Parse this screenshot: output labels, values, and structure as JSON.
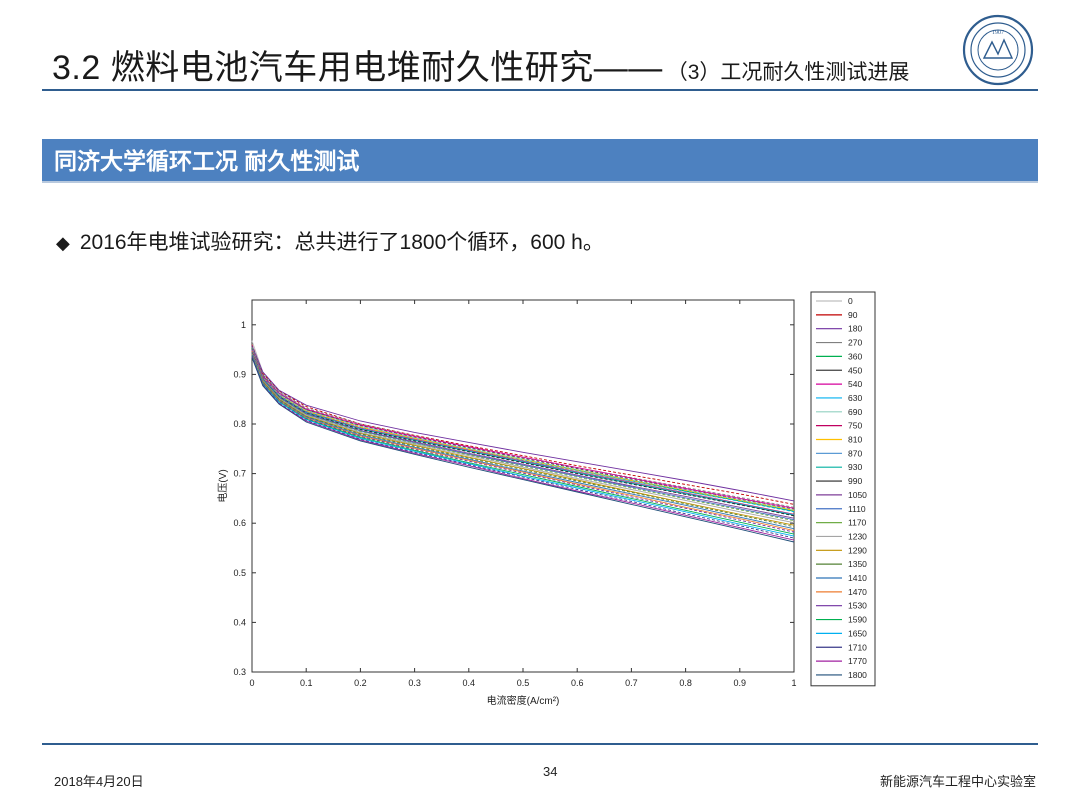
{
  "slide": {
    "title": "3.2 燃料电池汽车用电堆耐久性研究——",
    "subtitle": "（3）工况耐久性测试进展",
    "section_band": "同济大学循环工况 耐久性测试",
    "bullet": "2016年电堆试验研究：总共进行了1800个循环，600 h。",
    "footer_date": "2018年4月20日",
    "page_number": "34",
    "footer_org": "新能源汽车工程中心实验室",
    "logo_text": "1907",
    "colors": {
      "accent": "#2f5d8f",
      "band": "#4d81c0"
    }
  },
  "chart_data": {
    "type": "line",
    "title": "",
    "xlabel": "电流密度(A/cm²)",
    "ylabel": "电压(V)",
    "xlim": [
      0,
      1
    ],
    "ylim": [
      0.3,
      1.05
    ],
    "xticks": [
      "0",
      "0.1",
      "0.2",
      "0.3",
      "0.4",
      "0.5",
      "0.6",
      "0.7",
      "0.8",
      "0.9",
      "1"
    ],
    "yticks": [
      "0.3",
      "0.4",
      "0.5",
      "0.6",
      "0.7",
      "0.8",
      "0.9",
      "1"
    ],
    "grid": false,
    "legend_position": "right-outside",
    "x": [
      0,
      0.02,
      0.05,
      0.1,
      0.2,
      0.3,
      0.4,
      0.5,
      0.6,
      0.7,
      0.8,
      0.9,
      1.0
    ],
    "series": [
      {
        "name": "0",
        "color": "#bfbfbf",
        "values": [
          0.968,
          0.905,
          0.865,
          0.83,
          0.795,
          0.77,
          0.748,
          0.725,
          0.705,
          0.684,
          0.664,
          0.645,
          0.625
        ]
      },
      {
        "name": "90",
        "color": "#c00000",
        "values": [
          0.96,
          0.902,
          0.867,
          0.835,
          0.8,
          0.777,
          0.756,
          0.736,
          0.716,
          0.697,
          0.678,
          0.659,
          0.638
        ]
      },
      {
        "name": "180",
        "color": "#7030a0",
        "values": [
          0.958,
          0.905,
          0.868,
          0.838,
          0.806,
          0.783,
          0.763,
          0.743,
          0.724,
          0.705,
          0.686,
          0.666,
          0.645
        ]
      },
      {
        "name": "270",
        "color": "#808080",
        "values": [
          0.955,
          0.9,
          0.865,
          0.832,
          0.8,
          0.776,
          0.754,
          0.733,
          0.712,
          0.692,
          0.672,
          0.652,
          0.632
        ]
      },
      {
        "name": "360",
        "color": "#00b050",
        "values": [
          0.952,
          0.898,
          0.862,
          0.828,
          0.795,
          0.772,
          0.75,
          0.728,
          0.707,
          0.686,
          0.665,
          0.645,
          0.624
        ]
      },
      {
        "name": "450",
        "color": "#404040",
        "values": [
          0.95,
          0.896,
          0.861,
          0.829,
          0.797,
          0.774,
          0.752,
          0.731,
          0.71,
          0.689,
          0.668,
          0.648,
          0.628
        ]
      },
      {
        "name": "540",
        "color": "#d6009c",
        "values": [
          0.95,
          0.897,
          0.862,
          0.83,
          0.798,
          0.775,
          0.754,
          0.733,
          0.712,
          0.691,
          0.67,
          0.65,
          0.63
        ]
      },
      {
        "name": "630",
        "color": "#00b0f0",
        "values": [
          0.948,
          0.895,
          0.86,
          0.827,
          0.794,
          0.771,
          0.749,
          0.727,
          0.706,
          0.685,
          0.664,
          0.644,
          0.623
        ]
      },
      {
        "name": "690",
        "color": "#92d0c0",
        "values": [
          0.948,
          0.894,
          0.859,
          0.827,
          0.795,
          0.772,
          0.75,
          0.729,
          0.708,
          0.687,
          0.667,
          0.647,
          0.627
        ]
      },
      {
        "name": "750",
        "color": "#c00060",
        "values": [
          0.947,
          0.894,
          0.858,
          0.825,
          0.792,
          0.769,
          0.747,
          0.725,
          0.703,
          0.682,
          0.661,
          0.64,
          0.618
        ]
      },
      {
        "name": "810",
        "color": "#ffc000",
        "values": [
          0.946,
          0.893,
          0.858,
          0.826,
          0.794,
          0.771,
          0.749,
          0.728,
          0.707,
          0.686,
          0.666,
          0.646,
          0.626
        ]
      },
      {
        "name": "870",
        "color": "#5b9bd5",
        "values": [
          0.945,
          0.892,
          0.857,
          0.824,
          0.791,
          0.768,
          0.746,
          0.724,
          0.702,
          0.681,
          0.66,
          0.639,
          0.617
        ]
      },
      {
        "name": "930",
        "color": "#00b0a0",
        "values": [
          0.944,
          0.891,
          0.856,
          0.823,
          0.79,
          0.767,
          0.745,
          0.723,
          0.701,
          0.68,
          0.659,
          0.638,
          0.616
        ]
      },
      {
        "name": "990",
        "color": "#262626",
        "values": [
          0.944,
          0.89,
          0.855,
          0.822,
          0.789,
          0.766,
          0.744,
          0.722,
          0.7,
          0.679,
          0.658,
          0.637,
          0.615
        ]
      },
      {
        "name": "1050",
        "color": "#7f3f98",
        "values": [
          0.943,
          0.89,
          0.854,
          0.821,
          0.787,
          0.764,
          0.741,
          0.719,
          0.697,
          0.675,
          0.654,
          0.632,
          0.61
        ]
      },
      {
        "name": "1110",
        "color": "#4472c4",
        "values": [
          0.942,
          0.889,
          0.853,
          0.82,
          0.786,
          0.762,
          0.739,
          0.717,
          0.695,
          0.673,
          0.651,
          0.629,
          0.607
        ]
      },
      {
        "name": "1170",
        "color": "#70ad47",
        "values": [
          0.942,
          0.888,
          0.852,
          0.819,
          0.785,
          0.761,
          0.738,
          0.715,
          0.693,
          0.671,
          0.649,
          0.627,
          0.605
        ]
      },
      {
        "name": "1230",
        "color": "#a5a5a5",
        "values": [
          0.941,
          0.887,
          0.851,
          0.818,
          0.783,
          0.759,
          0.736,
          0.713,
          0.69,
          0.668,
          0.646,
          0.623,
          0.601
        ]
      },
      {
        "name": "1290",
        "color": "#bf9000",
        "values": [
          0.94,
          0.886,
          0.85,
          0.816,
          0.781,
          0.757,
          0.733,
          0.71,
          0.687,
          0.664,
          0.641,
          0.618,
          0.596
        ]
      },
      {
        "name": "1350",
        "color": "#548235",
        "values": [
          0.94,
          0.885,
          0.849,
          0.815,
          0.78,
          0.755,
          0.731,
          0.708,
          0.685,
          0.662,
          0.639,
          0.616,
          0.593
        ]
      },
      {
        "name": "1410",
        "color": "#2e75b6",
        "values": [
          0.939,
          0.884,
          0.848,
          0.814,
          0.778,
          0.753,
          0.729,
          0.705,
          0.682,
          0.659,
          0.636,
          0.612,
          0.589
        ]
      },
      {
        "name": "1470",
        "color": "#ed7d31",
        "values": [
          0.938,
          0.883,
          0.847,
          0.812,
          0.776,
          0.751,
          0.727,
          0.703,
          0.679,
          0.656,
          0.632,
          0.609,
          0.585
        ]
      },
      {
        "name": "1530",
        "color": "#7030a0",
        "values": [
          0.938,
          0.882,
          0.846,
          0.811,
          0.775,
          0.749,
          0.725,
          0.701,
          0.677,
          0.653,
          0.63,
          0.606,
          0.582
        ]
      },
      {
        "name": "1590",
        "color": "#00b050",
        "values": [
          0.937,
          0.881,
          0.845,
          0.81,
          0.773,
          0.747,
          0.722,
          0.698,
          0.674,
          0.65,
          0.626,
          0.602,
          0.578
        ]
      },
      {
        "name": "1650",
        "color": "#00b0f0",
        "values": [
          0.936,
          0.88,
          0.844,
          0.809,
          0.771,
          0.745,
          0.72,
          0.695,
          0.671,
          0.647,
          0.623,
          0.598,
          0.574
        ]
      },
      {
        "name": "1710",
        "color": "#3a3a8a",
        "values": [
          0.936,
          0.879,
          0.842,
          0.807,
          0.769,
          0.743,
          0.718,
          0.693,
          0.668,
          0.644,
          0.619,
          0.595,
          0.57
        ]
      },
      {
        "name": "1770",
        "color": "#a020a0",
        "values": [
          0.935,
          0.878,
          0.841,
          0.806,
          0.768,
          0.741,
          0.716,
          0.69,
          0.665,
          0.641,
          0.616,
          0.591,
          0.566
        ]
      },
      {
        "name": "1800",
        "color": "#1f4e79",
        "values": [
          0.934,
          0.877,
          0.84,
          0.804,
          0.766,
          0.739,
          0.713,
          0.688,
          0.663,
          0.638,
          0.613,
          0.588,
          0.562
        ]
      }
    ]
  }
}
